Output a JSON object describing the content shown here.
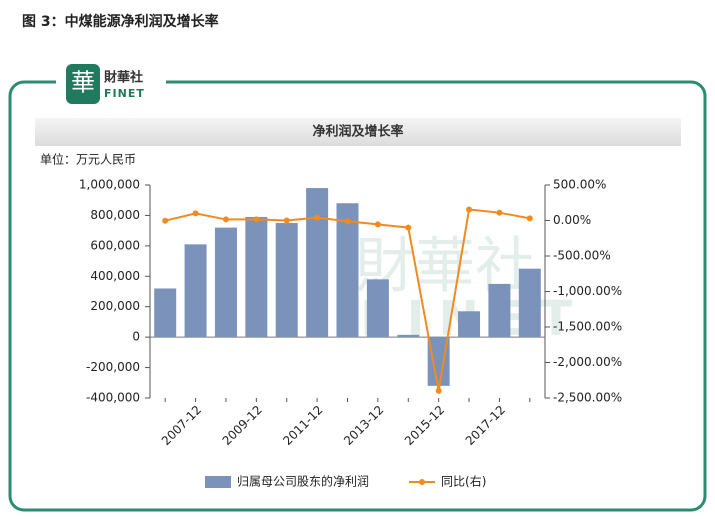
{
  "heading": "图 3：中煤能源净利润及增长率",
  "logo": {
    "mark": "華",
    "name": "財華社",
    "sub": "FINET"
  },
  "chart_data": {
    "type": "combo",
    "title": "净利润及增长率",
    "unit": "单位：万元人民币",
    "categories": [
      null,
      "2007-12",
      null,
      "2009-12",
      null,
      "2011-12",
      null,
      "2013-12",
      null,
      "2015-12",
      null,
      "2017-12",
      null
    ],
    "ylim": [
      -400000,
      1000000
    ],
    "yticks": [
      {
        "value": -400000,
        "label": "-400,000"
      },
      {
        "value": -200000,
        "label": "-200,000"
      },
      0,
      {
        "value": 200000,
        "label": "200,000"
      },
      {
        "value": 400000,
        "label": "400,000"
      },
      {
        "value": 600000,
        "label": "600,000"
      },
      {
        "value": 800000,
        "label": "800,000"
      },
      {
        "value": 1000000,
        "label": "1,000,000"
      }
    ],
    "y2lim": [
      -2500,
      500
    ],
    "y2ticks": [
      {
        "value": -2500,
        "label": "-2,500.00%"
      },
      {
        "value": -2000,
        "label": "-2,000.00%"
      },
      {
        "value": -1500,
        "label": "-1,500.00%"
      },
      {
        "value": -1000,
        "label": "-1,000.00%"
      },
      {
        "value": -500,
        "label": "-500.00%"
      },
      {
        "value": 0,
        "label": "0.00%"
      },
      {
        "value": 500,
        "label": "500.00%"
      }
    ],
    "series": [
      {
        "name": "归属母公司股东的净利润",
        "type": "bar",
        "color": "#7b93bb",
        "values": [
          320000,
          610000,
          720000,
          790000,
          750000,
          980000,
          880000,
          380000,
          15000,
          -320000,
          170000,
          350000,
          450000
        ]
      },
      {
        "name": "同比(右)",
        "type": "line",
        "axis": "y2",
        "color": "#f28a1e",
        "values": [
          -3,
          100,
          15,
          15,
          0,
          40,
          -10,
          -55,
          -100,
          -2400,
          155,
          110,
          30
        ]
      }
    ]
  }
}
